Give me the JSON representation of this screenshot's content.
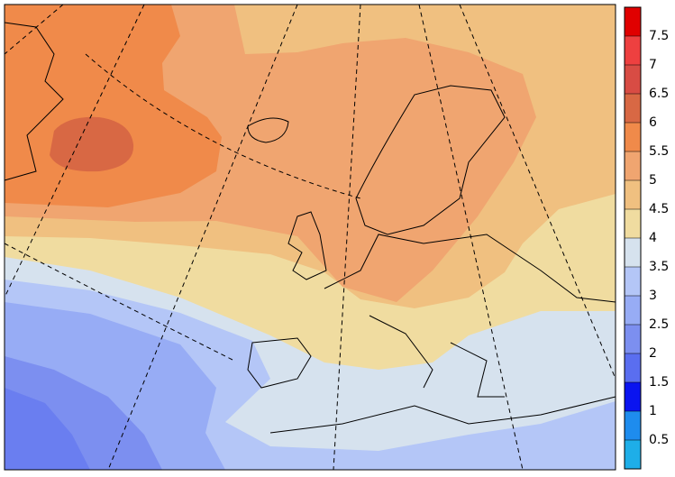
{
  "colorbar": {
    "lim": [
      0,
      8
    ],
    "ticks": [
      0.5,
      1,
      1.5,
      2,
      2.5,
      3,
      3.5,
      4,
      4.5,
      5,
      5.5,
      6,
      6.5,
      7,
      7.5
    ],
    "colors": [
      "#1eaee8",
      "#1e8cee",
      "#0a14f0",
      "#5a6ef0",
      "#7c8ff0",
      "#97acf5",
      "#b4c6f7",
      "#d6e2ee",
      "#f0dca0",
      "#f0c080",
      "#f0a570",
      "#f08a4a",
      "#d86844",
      "#d84c44",
      "#ee4040",
      "#e00000"
    ]
  }
}
